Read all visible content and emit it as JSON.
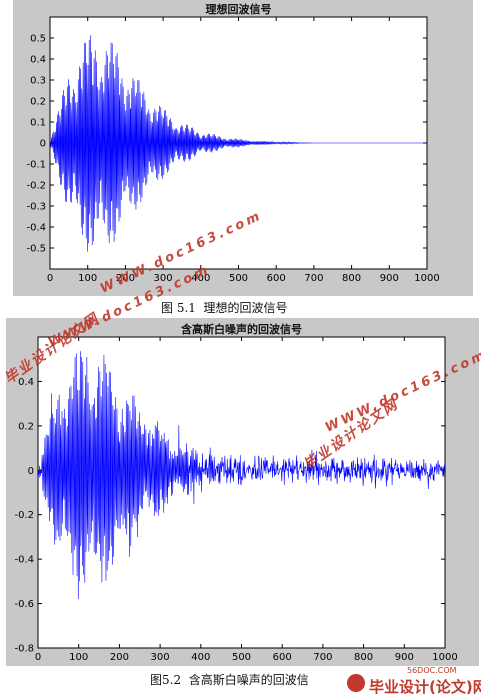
{
  "chart_data": [
    {
      "type": "line",
      "title": "理想回波信号",
      "xlim": [
        0,
        1000
      ],
      "ylim": [
        -0.6,
        0.6
      ],
      "x_ticks": [
        0,
        100,
        200,
        300,
        400,
        500,
        600,
        700,
        800,
        900,
        1000
      ],
      "y_ticks": [
        -0.5,
        -0.4,
        -0.3,
        -0.2,
        -0.1,
        0,
        0.1,
        0.2,
        0.3,
        0.4,
        0.5
      ],
      "x_tick_labels": [
        "0",
        "100",
        "200",
        "300",
        "400",
        "500",
        "600",
        "700",
        "800",
        "900",
        "1000"
      ],
      "y_tick_labels": [
        "-0.5",
        "-0.4",
        "-0.3",
        "-0.2",
        "-0.1",
        "0",
        "0.1",
        "0.2",
        "0.3",
        "0.4",
        "0.5"
      ],
      "color": "#0000ff",
      "series": [
        {
          "signal": "decaying oscillation envelope",
          "envelope": {
            "x": [
              0,
              20,
              50,
              80,
              100,
              120,
              140,
              160,
              180,
              200,
              250,
              300,
              350,
              400,
              450,
              500,
              550,
              600,
              650,
              700,
              800,
              1000
            ],
            "amplitude": [
              0.02,
              0.15,
              0.35,
              0.48,
              0.52,
              0.54,
              0.53,
              0.5,
              0.45,
              0.39,
              0.27,
              0.17,
              0.1,
              0.06,
              0.035,
              0.02,
              0.01,
              0.006,
              0.003,
              0.0,
              0.0,
              0.0
            ]
          }
        }
      ],
      "grid": false
    },
    {
      "type": "line",
      "title": "含高斯白噪声的回波信号",
      "xlim": [
        0,
        1000
      ],
      "ylim": [
        -0.8,
        0.6
      ],
      "x_ticks": [
        0,
        100,
        200,
        300,
        400,
        500,
        600,
        700,
        800,
        900,
        1000
      ],
      "y_ticks": [
        -0.8,
        -0.6,
        -0.4,
        -0.2,
        0,
        0.2,
        0.4
      ],
      "x_tick_labels": [
        "0",
        "100",
        "200",
        "300",
        "400",
        "500",
        "600",
        "700",
        "800",
        "900",
        "1000"
      ],
      "y_tick_labels": [
        "-0.8",
        "-0.6",
        "-0.4",
        "-0.2",
        "0",
        "0.2",
        "0.4"
      ],
      "color": "#0000ff",
      "series": [
        {
          "signal": "decaying oscillation envelope plus gaussian noise",
          "envelope": {
            "x": [
              0,
              20,
              50,
              80,
              100,
              120,
              140,
              160,
              180,
              200,
              250,
              300,
              350,
              400,
              450,
              500,
              550,
              600,
              650,
              700,
              800,
              1000
            ],
            "amplitude": [
              0.03,
              0.16,
              0.37,
              0.5,
              0.55,
              0.56,
              0.55,
              0.52,
              0.47,
              0.4,
              0.28,
              0.18,
              0.11,
              0.07,
              0.04,
              0.02,
              0.01,
              0.006,
              0.003,
              0.0,
              0.0,
              0.0
            ]
          },
          "noise_std": 0.03
        }
      ],
      "grid": false
    }
  ],
  "captions": {
    "fig1": "图 5.1  理想的回波信号",
    "fig2": "图5.2  含高斯白噪声的回波信"
  },
  "watermarks": {
    "site": "WWW.doc163.com",
    "name": "毕业设计论文网"
  },
  "footer": {
    "sub": "56DOC.COM",
    "main": "毕业设计(论文)网"
  },
  "colors": {
    "panel_bg": "#c8c8c8",
    "plot_bg": "#ffffff",
    "signal": "#0000ff",
    "watermark": "#c0392b"
  }
}
